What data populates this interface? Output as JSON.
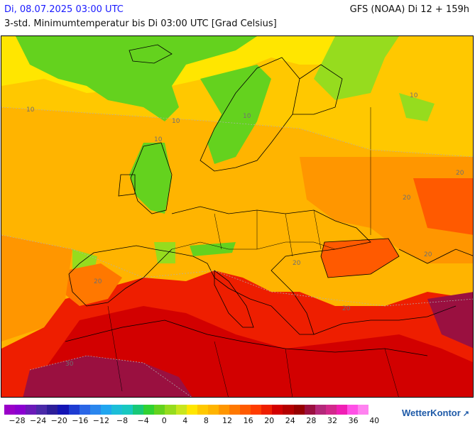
{
  "header": {
    "date": "Di, 08.07.2025 03:00 UTC",
    "model": "GFS (NOAA) Di 12 + 159h",
    "title": "3-std. Minimumtemperatur bis Di 03:00 UTC [Grad Celsius]"
  },
  "map": {
    "contour_labels": [
      "10",
      "10",
      "10",
      "10",
      "10",
      "20",
      "20",
      "20",
      "20",
      "20",
      "20",
      "30"
    ]
  },
  "legend": {
    "colors": [
      "#9a00c8",
      "#8a00d0",
      "#6a1ab8",
      "#4a2aa8",
      "#2d1e9a",
      "#1414b4",
      "#1e3cd2",
      "#2a66e6",
      "#2a86ee",
      "#20a6f0",
      "#1cbed8",
      "#18c8c0",
      "#18c878",
      "#30d232",
      "#64d21e",
      "#96dc1e",
      "#c8e61e",
      "#ffe600",
      "#ffc800",
      "#ffb400",
      "#ff9600",
      "#ff7800",
      "#ff5a00",
      "#ff3c00",
      "#ee1e00",
      "#d20000",
      "#b40000",
      "#960000",
      "#9a1040",
      "#b4287a",
      "#d2288c",
      "#f01eb4",
      "#ff50e6",
      "#ff82f0"
    ],
    "labels": [
      "−28",
      "−24",
      "−20",
      "−16",
      "−12",
      "−8",
      "−4",
      "0",
      "4",
      "8",
      "12",
      "16",
      "20",
      "24",
      "28",
      "32",
      "36",
      "40"
    ]
  },
  "brand": {
    "name": "WetterKontor",
    "mark": "↗"
  }
}
